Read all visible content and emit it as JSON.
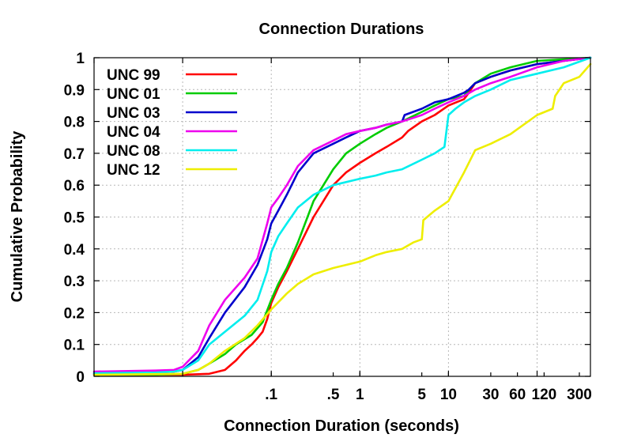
{
  "chart_data": {
    "type": "line",
    "title": "Connection Durations",
    "xlabel": "Connection Duration (seconds)",
    "ylabel": "Cumulative Probability",
    "x_scale": "log",
    "xlim": [
      0.001,
      400
    ],
    "ylim": [
      0,
      1
    ],
    "grid": true,
    "legend_position": "top-left",
    "x_ticks": [
      {
        "value": 0.1,
        "label": ".1"
      },
      {
        "value": 0.5,
        "label": ".5"
      },
      {
        "value": 1,
        "label": "1"
      },
      {
        "value": 5,
        "label": "5"
      },
      {
        "value": 10,
        "label": "10"
      },
      {
        "value": 30,
        "label": "30"
      },
      {
        "value": 60,
        "label": "60"
      },
      {
        "value": 120,
        "label": "120"
      },
      {
        "value": 300,
        "label": "300"
      }
    ],
    "x_grid": [
      0.001,
      0.01,
      0.1,
      1,
      10,
      100
    ],
    "y_ticks": [
      {
        "value": 0,
        "label": "0"
      },
      {
        "value": 0.1,
        "label": "0.1"
      },
      {
        "value": 0.2,
        "label": "0.2"
      },
      {
        "value": 0.3,
        "label": "0.3"
      },
      {
        "value": 0.4,
        "label": "0.4"
      },
      {
        "value": 0.5,
        "label": "0.5"
      },
      {
        "value": 0.6,
        "label": "0.6"
      },
      {
        "value": 0.7,
        "label": "0.7"
      },
      {
        "value": 0.8,
        "label": "0.8"
      },
      {
        "value": 0.9,
        "label": "0.9"
      },
      {
        "value": 1,
        "label": "1"
      }
    ],
    "series": [
      {
        "name": "UNC 99",
        "color": "#ff0000",
        "x": [
          0.001,
          0.01,
          0.02,
          0.03,
          0.04,
          0.05,
          0.06,
          0.07,
          0.08,
          0.09,
          0.1,
          0.12,
          0.15,
          0.2,
          0.3,
          0.5,
          0.7,
          1,
          1.5,
          2,
          3,
          3.5,
          5,
          7,
          10,
          15,
          17,
          20,
          30,
          50,
          100,
          200,
          400
        ],
        "y": [
          0.005,
          0.005,
          0.008,
          0.02,
          0.05,
          0.08,
          0.1,
          0.12,
          0.14,
          0.18,
          0.23,
          0.28,
          0.33,
          0.4,
          0.5,
          0.6,
          0.64,
          0.67,
          0.7,
          0.72,
          0.75,
          0.77,
          0.8,
          0.82,
          0.85,
          0.87,
          0.89,
          0.92,
          0.94,
          0.96,
          0.98,
          0.99,
          1.0
        ]
      },
      {
        "name": "UNC 01",
        "color": "#00cc00",
        "x": [
          0.001,
          0.005,
          0.01,
          0.015,
          0.02,
          0.03,
          0.04,
          0.06,
          0.08,
          0.1,
          0.12,
          0.15,
          0.2,
          0.3,
          0.5,
          0.7,
          1,
          1.5,
          2,
          3,
          5,
          7,
          10,
          15,
          17,
          20,
          30,
          50,
          100,
          200,
          400
        ],
        "y": [
          0.005,
          0.005,
          0.008,
          0.02,
          0.04,
          0.07,
          0.1,
          0.13,
          0.17,
          0.24,
          0.29,
          0.34,
          0.42,
          0.55,
          0.65,
          0.7,
          0.73,
          0.76,
          0.78,
          0.8,
          0.83,
          0.85,
          0.87,
          0.88,
          0.9,
          0.92,
          0.95,
          0.97,
          0.99,
          0.995,
          1.0
        ]
      },
      {
        "name": "UNC 03",
        "color": "#0000cc",
        "x": [
          0.001,
          0.005,
          0.008,
          0.01,
          0.015,
          0.02,
          0.03,
          0.05,
          0.07,
          0.09,
          0.1,
          0.12,
          0.15,
          0.2,
          0.3,
          0.5,
          0.7,
          1,
          1.5,
          2,
          3,
          3.2,
          5,
          7,
          10,
          15,
          17,
          20,
          30,
          50,
          100,
          200,
          400
        ],
        "y": [
          0.01,
          0.012,
          0.015,
          0.02,
          0.06,
          0.12,
          0.2,
          0.28,
          0.35,
          0.43,
          0.48,
          0.52,
          0.57,
          0.64,
          0.7,
          0.73,
          0.75,
          0.77,
          0.78,
          0.79,
          0.8,
          0.82,
          0.84,
          0.86,
          0.87,
          0.89,
          0.9,
          0.92,
          0.94,
          0.96,
          0.98,
          0.99,
          1.0
        ]
      },
      {
        "name": "UNC 04",
        "color": "#ee00ee",
        "x": [
          0.001,
          0.005,
          0.008,
          0.01,
          0.015,
          0.02,
          0.03,
          0.05,
          0.07,
          0.09,
          0.1,
          0.12,
          0.15,
          0.2,
          0.3,
          0.5,
          0.7,
          1,
          1.5,
          2,
          3,
          5,
          7,
          10,
          15,
          20,
          30,
          50,
          100,
          200,
          400
        ],
        "y": [
          0.015,
          0.018,
          0.02,
          0.03,
          0.08,
          0.16,
          0.24,
          0.31,
          0.37,
          0.48,
          0.53,
          0.56,
          0.6,
          0.66,
          0.71,
          0.74,
          0.76,
          0.77,
          0.78,
          0.79,
          0.8,
          0.82,
          0.84,
          0.86,
          0.88,
          0.9,
          0.92,
          0.94,
          0.97,
          0.99,
          1.0
        ]
      },
      {
        "name": "UNC 08",
        "color": "#00eeee",
        "x": [
          0.001,
          0.005,
          0.008,
          0.01,
          0.015,
          0.02,
          0.03,
          0.05,
          0.07,
          0.09,
          0.1,
          0.12,
          0.15,
          0.2,
          0.3,
          0.5,
          1,
          1.5,
          2,
          3,
          5,
          7,
          9,
          10,
          12,
          15,
          20,
          30,
          50,
          100,
          200,
          400
        ],
        "y": [
          0.01,
          0.012,
          0.015,
          0.02,
          0.05,
          0.1,
          0.14,
          0.19,
          0.24,
          0.33,
          0.39,
          0.44,
          0.48,
          0.53,
          0.57,
          0.6,
          0.62,
          0.63,
          0.64,
          0.65,
          0.68,
          0.7,
          0.72,
          0.82,
          0.84,
          0.86,
          0.88,
          0.9,
          0.93,
          0.95,
          0.97,
          1.0
        ]
      },
      {
        "name": "UNC 12",
        "color": "#eeee00",
        "x": [
          0.001,
          0.01,
          0.015,
          0.02,
          0.03,
          0.05,
          0.07,
          0.1,
          0.15,
          0.2,
          0.3,
          0.5,
          1,
          1.5,
          2,
          3,
          4,
          5,
          5.2,
          7,
          10,
          15,
          20,
          30,
          50,
          100,
          150,
          160,
          200,
          300,
          400
        ],
        "y": [
          0.005,
          0.008,
          0.02,
          0.04,
          0.08,
          0.12,
          0.16,
          0.21,
          0.26,
          0.29,
          0.32,
          0.34,
          0.36,
          0.38,
          0.39,
          0.4,
          0.42,
          0.43,
          0.49,
          0.52,
          0.55,
          0.64,
          0.71,
          0.73,
          0.76,
          0.82,
          0.84,
          0.88,
          0.92,
          0.94,
          0.98
        ]
      }
    ]
  }
}
